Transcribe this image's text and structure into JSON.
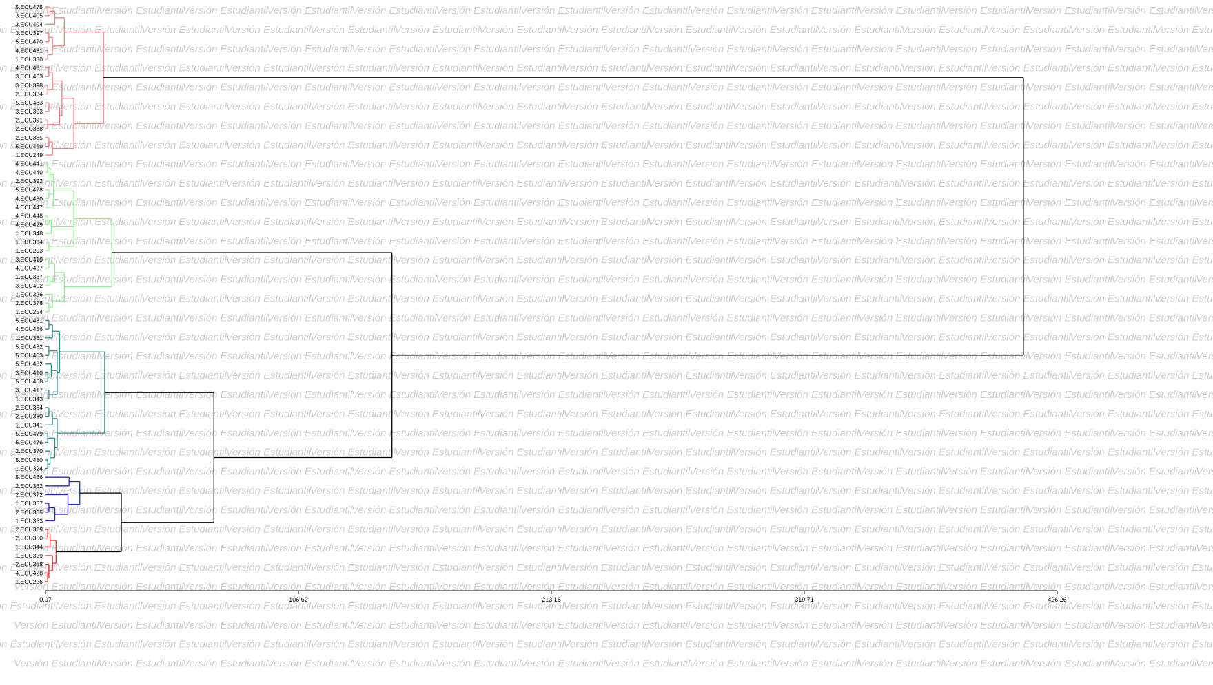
{
  "watermark": {
    "text": "Versión Estudiantil"
  },
  "colors": {
    "cluster_1": "#f08080",
    "cluster_2": "#90ee90",
    "cluster_3": "#2f8f8f",
    "cluster_4": "#2222dd",
    "cluster_5": "#ee2222",
    "root": "#000000"
  },
  "chart_data": {
    "type": "dendrogram",
    "title": "",
    "xlabel": "",
    "ylabel": "",
    "xlim": [
      0.07,
      426.26
    ],
    "x_ticks": [
      "0,07",
      "106,62",
      "213,16",
      "319,71",
      "426,26"
    ],
    "leaves": [
      "5.ECU475",
      "3.ECU405",
      "3.ECU404",
      "3.ECU397",
      "5.ECU470",
      "4.ECU431",
      "1.ECU330",
      "4.ECU461",
      "3.ECU403",
      "3.ECU398",
      "2.ECU384",
      "5.ECU483",
      "3.ECU393",
      "2.ECU391",
      "2.ECU388",
      "2.ECU385",
      "5.ECU469",
      "1.ECU249",
      "4.ECU441",
      "4.ECU440",
      "2.ECU392",
      "5.ECU478",
      "4.ECU430",
      "4.ECU447",
      "4.ECU448",
      "4.ECU429",
      "1.ECU348",
      "1.ECU334",
      "1.ECU293",
      "3.ECU419",
      "4.ECU437",
      "1.ECU337",
      "3.ECU402",
      "1.ECU326",
      "2.ECU378",
      "1.ECU254",
      "5.ECU481",
      "4.ECU456",
      "1.ECU361",
      "5.ECU482",
      "5.ECU463",
      "5.ECU462",
      "3.ECU410",
      "5.ECU468",
      "3.ECU417",
      "1.ECU343",
      "2.ECU364",
      "2.ECU380",
      "1.ECU341",
      "5.ECU479",
      "5.ECU476",
      "2.ECU370",
      "5.ECU480",
      "1.ECU324",
      "5.ECU466",
      "2.ECU362",
      "2.ECU372",
      "1.ECU357",
      "2.ECU365",
      "1.ECU353",
      "2.ECU369",
      "2.ECU350",
      "1.ECU344",
      "1.ECU329",
      "2.ECU368",
      "4.ECU428",
      "1.ECU226"
    ],
    "leaf_cluster": [
      1,
      1,
      1,
      1,
      1,
      1,
      1,
      1,
      1,
      1,
      1,
      1,
      1,
      1,
      1,
      1,
      1,
      1,
      2,
      2,
      2,
      2,
      2,
      2,
      2,
      2,
      2,
      2,
      2,
      2,
      2,
      2,
      2,
      2,
      2,
      2,
      3,
      3,
      3,
      3,
      3,
      3,
      3,
      3,
      3,
      3,
      3,
      3,
      3,
      3,
      3,
      3,
      3,
      3,
      4,
      4,
      4,
      4,
      4,
      4,
      5,
      5,
      5,
      5,
      5,
      5,
      5
    ],
    "tree": {
      "h": 412,
      "c": [
        {
          "h": 24.5,
          "c": [
            {
              "h": 8,
              "c": [
                {
                  "h": 4,
                  "c": [
                    {
                      "h": 2,
                      "c": [
                        0,
                        1
                      ]
                    },
                    2
                  ]
                },
                {
                  "h": 3,
                  "c": [
                    {
                      "h": 1.5,
                      "c": [
                        3,
                        4
                      ]
                    },
                    {
                      "h": 1,
                      "c": [
                        5,
                        6
                      ]
                    }
                  ]
                }
              ]
            },
            {
              "h": 12,
              "c": [
                {
                  "h": 7,
                  "c": [
                    {
                      "h": 3,
                      "c": [
                        {
                          "h": 1.5,
                          "c": [
                            7,
                            8
                          ]
                        },
                        {
                          "h": 1,
                          "c": [
                            9,
                            10
                          ]
                        }
                      ]
                    },
                    {
                      "h": 6,
                      "c": [
                        {
                          "h": 1.5,
                          "c": [
                            11,
                            12
                          ]
                        },
                        {
                          "h": 1,
                          "c": [
                            13,
                            14
                          ]
                        }
                      ]
                    }
                  ]
                },
                {
                  "h": 3,
                  "c": [
                    {
                      "h": 1.5,
                      "c": [
                        15,
                        16
                      ]
                    },
                    17
                  ]
                }
              ]
            }
          ]
        },
        {
          "h": 146,
          "c": [
            {
              "h": 28,
              "c": [
                {
                  "h": 12,
                  "c": [
                    {
                      "h": 3.5,
                      "c": [
                        {
                          "h": 2,
                          "c": [
                            {
                              "h": 1,
                              "c": [
                                18,
                                19
                              ]
                            },
                            20
                          ]
                        },
                        {
                          "h": 1.5,
                          "c": [
                            21,
                            22
                          ]
                        },
                        23
                      ]
                    },
                    {
                      "h": 2.5,
                      "c": [
                        {
                          "h": 1,
                          "c": [
                            24,
                            25
                          ]
                        },
                        26
                      ]
                    },
                    {
                      "h": 1.5,
                      "c": [
                        27,
                        28
                      ]
                    }
                  ]
                },
                {
                  "h": 8,
                  "c": [
                    {
                      "h": 4,
                      "c": [
                        {
                          "h": 1.5,
                          "c": [
                            29,
                            30
                          ]
                        },
                        {
                          "h": 2,
                          "c": [
                            31,
                            32
                          ]
                        }
                      ]
                    },
                    {
                      "h": 3,
                      "c": [
                        33,
                        {
                          "h": 1.5,
                          "c": [
                            34,
                            35
                          ]
                        }
                      ]
                    }
                  ]
                }
              ]
            },
            {
              "h": 71,
              "c": [
                {
                  "h": 25,
                  "c": [
                    {
                      "h": 6,
                      "c": [
                        {
                          "h": 3,
                          "c": [
                            {
                              "h": 1.5,
                              "c": [
                                36,
                                37
                              ]
                            },
                            38
                          ]
                        },
                        {
                          "h": 5,
                          "c": [
                            {
                              "h": 1.5,
                              "c": [
                                39,
                                40
                              ]
                            },
                            {
                              "h": 2.5,
                              "c": [
                                41,
                                {
                                  "h": 1,
                                  "c": [
                                    42,
                                    43
                                  ]
                                }
                              ]
                            },
                            {
                              "h": 1.5,
                              "c": [
                                44,
                                45
                              ]
                            }
                          ]
                        }
                      ]
                    },
                    {
                      "h": 5,
                      "c": [
                        {
                          "h": 3,
                          "c": [
                            {
                              "h": 1.5,
                              "c": [
                                46,
                                47
                              ]
                            },
                            48
                          ]
                        },
                        {
                          "h": 4,
                          "c": [
                            {
                              "h": 1,
                              "c": [
                                49,
                                50
                              ]
                            },
                            {
                              "h": 2,
                              "c": [
                                51,
                                {
                                  "h": 1,
                                  "c": [
                                    52,
                                    53
                                  ]
                                }
                              ]
                            }
                          ]
                        }
                      ]
                    }
                  ]
                },
                {
                  "h": 32,
                  "c": [
                    {
                      "h": 14.5,
                      "c": [
                        {
                          "h": 10,
                          "c": [
                            54,
                            55
                          ]
                        },
                        {
                          "h": 9.5,
                          "c": [
                            56,
                            {
                              "h": 4,
                              "c": [
                                {
                                  "h": 1.5,
                                  "c": [
                                    57,
                                    58
                                  ]
                                },
                                59
                              ]
                            }
                          ]
                        }
                      ]
                    },
                    {
                      "h": 4.5,
                      "c": [
                        {
                          "h": 2,
                          "c": [
                            {
                              "h": 1,
                              "c": [
                                60,
                                61
                              ]
                            },
                            62
                          ]
                        },
                        {
                          "h": 3,
                          "c": [
                            63,
                            {
                              "h": 1.5,
                              "c": [
                                64,
                                {
                                  "h": 1,
                                  "c": [
                                    65,
                                    66
                                  ]
                                }
                              ]
                            }
                          ]
                        }
                      ]
                    }
                  ]
                }
              ]
            }
          ]
        }
      ]
    }
  }
}
